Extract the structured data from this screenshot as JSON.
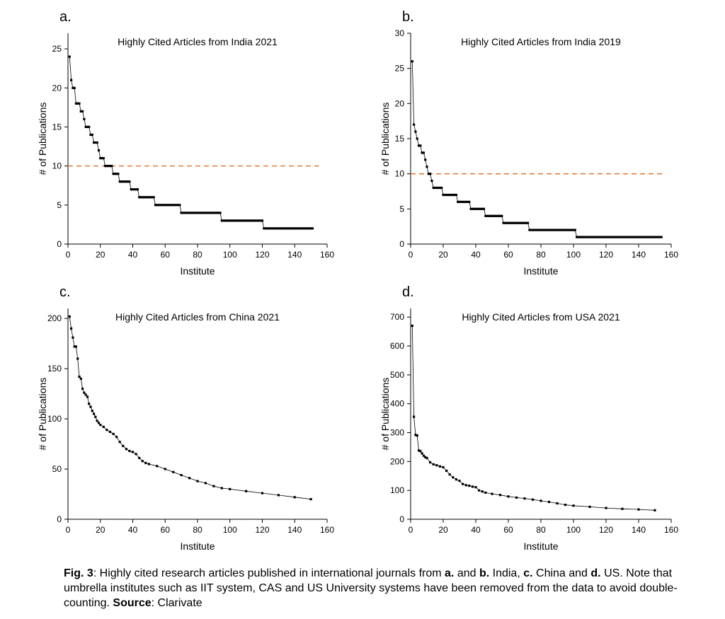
{
  "caption": {
    "fig_label": "Fig. 3",
    "text_1": ": Highly cited research articles published in international journals from ",
    "bold_a": "a.",
    "text_2": " and ",
    "bold_b": "b.",
    "text_3": " India, ",
    "bold_c": "c.",
    "text_4": " China and ",
    "bold_d": "d.",
    "text_5": " US. Note that umbrella institutes such as IIT system, CAS and US University systems have been removed from the data to avoid double-counting. ",
    "source_label": "Source",
    "source_text": ": Clarivate"
  },
  "chart_data": [
    {
      "panel": "a.",
      "type": "line",
      "title": "Highly Cited Articles from India 2021",
      "xlabel": "Institute",
      "ylabel": "# of Publications",
      "xlim": [
        0,
        160
      ],
      "ylim": [
        0,
        27
      ],
      "xticks": [
        0,
        20,
        40,
        60,
        80,
        100,
        120,
        140,
        160
      ],
      "yticks": [
        0,
        5,
        10,
        15,
        20,
        25
      ],
      "reference_line": {
        "y": 10,
        "style": "dashed",
        "color": "#e07b39"
      },
      "marker": "square",
      "series_color": "#000000",
      "steps": [
        [
          24,
          1
        ],
        [
          21,
          1
        ],
        [
          20,
          2
        ],
        [
          18,
          3
        ],
        [
          17,
          2
        ],
        [
          16,
          1
        ],
        [
          15,
          3
        ],
        [
          14,
          2
        ],
        [
          13,
          3
        ],
        [
          12,
          1
        ],
        [
          11,
          3
        ],
        [
          10,
          5
        ],
        [
          9,
          4
        ],
        [
          8,
          7
        ],
        [
          7,
          5
        ],
        [
          6,
          10
        ],
        [
          5,
          16
        ],
        [
          4,
          25
        ],
        [
          3,
          26
        ],
        [
          2,
          31
        ]
      ]
    },
    {
      "panel": "b.",
      "type": "line",
      "title": "Highly Cited Articles from India 2019",
      "xlabel": "Institute",
      "ylabel": "# of Publications",
      "xlim": [
        0,
        160
      ],
      "ylim": [
        0,
        30
      ],
      "xticks": [
        0,
        20,
        40,
        60,
        80,
        100,
        120,
        140,
        160
      ],
      "yticks": [
        0,
        5,
        10,
        15,
        20,
        25,
        30
      ],
      "reference_line": {
        "y": 10,
        "style": "dashed",
        "color": "#e07b39"
      },
      "marker": "square",
      "series_color": "#000000",
      "steps": [
        [
          26,
          1
        ],
        [
          17,
          1
        ],
        [
          16,
          1
        ],
        [
          15,
          1
        ],
        [
          14,
          2
        ],
        [
          13,
          2
        ],
        [
          12,
          1
        ],
        [
          11,
          1
        ],
        [
          10,
          2
        ],
        [
          9,
          1
        ],
        [
          8,
          6
        ],
        [
          7,
          9
        ],
        [
          6,
          8
        ],
        [
          5,
          9
        ],
        [
          4,
          11
        ],
        [
          3,
          16
        ],
        [
          2,
          29
        ],
        [
          1,
          53
        ]
      ]
    },
    {
      "panel": "c.",
      "type": "line",
      "title": "Highly Cited Articles from China 2021",
      "xlabel": "Institute",
      "ylabel": "# of Publications",
      "xlim": [
        0,
        160
      ],
      "ylim": [
        0,
        210
      ],
      "xticks": [
        0,
        20,
        40,
        60,
        80,
        100,
        120,
        140,
        160
      ],
      "yticks": [
        0,
        50,
        100,
        150,
        200
      ],
      "reference_line": null,
      "marker": "square",
      "series_color": "#000000",
      "points": [
        [
          1,
          202
        ],
        [
          2,
          190
        ],
        [
          3,
          181
        ],
        [
          4,
          172
        ],
        [
          5,
          172
        ],
        [
          6,
          160
        ],
        [
          7,
          142
        ],
        [
          8,
          140
        ],
        [
          9,
          130
        ],
        [
          10,
          126
        ],
        [
          11,
          124
        ],
        [
          12,
          122
        ],
        [
          13,
          115
        ],
        [
          14,
          112
        ],
        [
          15,
          108
        ],
        [
          16,
          105
        ],
        [
          17,
          102
        ],
        [
          18,
          98
        ],
        [
          19,
          96
        ],
        [
          20,
          94
        ],
        [
          22,
          92
        ],
        [
          24,
          89
        ],
        [
          26,
          87
        ],
        [
          28,
          85
        ],
        [
          30,
          82
        ],
        [
          32,
          77
        ],
        [
          34,
          73
        ],
        [
          36,
          70
        ],
        [
          38,
          68
        ],
        [
          40,
          67
        ],
        [
          42,
          65
        ],
        [
          44,
          61
        ],
        [
          46,
          58
        ],
        [
          48,
          56
        ],
        [
          50,
          55
        ],
        [
          55,
          53
        ],
        [
          60,
          50
        ],
        [
          65,
          47
        ],
        [
          70,
          44
        ],
        [
          75,
          41
        ],
        [
          80,
          38
        ],
        [
          85,
          36
        ],
        [
          90,
          33
        ],
        [
          95,
          31
        ],
        [
          100,
          30
        ],
        [
          110,
          28
        ],
        [
          120,
          26
        ],
        [
          130,
          24
        ],
        [
          140,
          22
        ],
        [
          150,
          20
        ]
      ]
    },
    {
      "panel": "d.",
      "type": "line",
      "title": "Highly Cited Articles from USA 2021",
      "xlabel": "Institute",
      "ylabel": "# of Publications",
      "xlim": [
        0,
        160
      ],
      "ylim": [
        0,
        730
      ],
      "xticks": [
        0,
        20,
        40,
        60,
        80,
        100,
        120,
        140,
        160
      ],
      "yticks": [
        0,
        100,
        200,
        300,
        400,
        500,
        600,
        700
      ],
      "reference_line": null,
      "marker": "square",
      "series_color": "#000000",
      "points": [
        [
          1,
          670
        ],
        [
          2,
          355
        ],
        [
          3,
          292
        ],
        [
          4,
          290
        ],
        [
          5,
          238
        ],
        [
          6,
          236
        ],
        [
          7,
          228
        ],
        [
          8,
          220
        ],
        [
          9,
          215
        ],
        [
          10,
          212
        ],
        [
          12,
          197
        ],
        [
          14,
          190
        ],
        [
          16,
          187
        ],
        [
          18,
          183
        ],
        [
          20,
          180
        ],
        [
          22,
          168
        ],
        [
          24,
          155
        ],
        [
          26,
          145
        ],
        [
          28,
          138
        ],
        [
          30,
          133
        ],
        [
          32,
          122
        ],
        [
          34,
          118
        ],
        [
          36,
          116
        ],
        [
          38,
          113
        ],
        [
          40,
          111
        ],
        [
          42,
          100
        ],
        [
          44,
          96
        ],
        [
          46,
          92
        ],
        [
          50,
          88
        ],
        [
          55,
          84
        ],
        [
          60,
          79
        ],
        [
          65,
          75
        ],
        [
          70,
          72
        ],
        [
          75,
          68
        ],
        [
          80,
          64
        ],
        [
          85,
          60
        ],
        [
          90,
          55
        ],
        [
          95,
          50
        ],
        [
          100,
          47
        ],
        [
          110,
          43
        ],
        [
          120,
          39
        ],
        [
          130,
          36
        ],
        [
          140,
          34
        ],
        [
          150,
          31
        ]
      ]
    }
  ]
}
